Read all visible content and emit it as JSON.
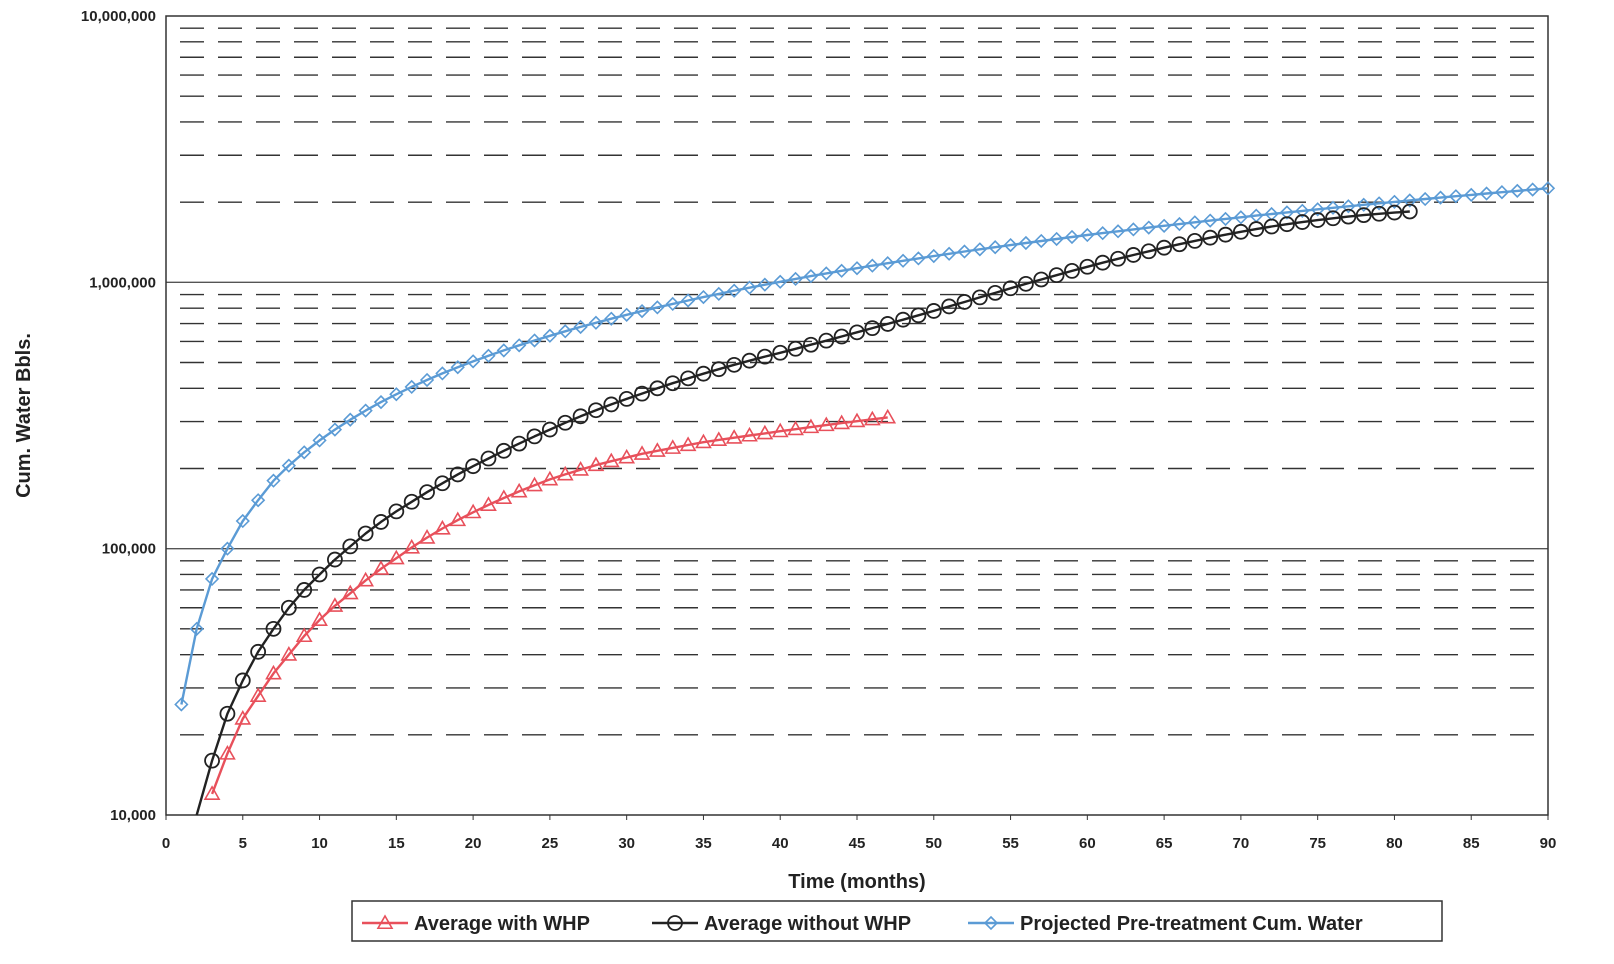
{
  "chart_data": {
    "type": "line",
    "title": "",
    "xlabel": "Time (months)",
    "ylabel": "Cum. Water Bbls.",
    "xlim": [
      0,
      90
    ],
    "ylim": [
      10000,
      10000000
    ],
    "yscale": "log",
    "grid": true,
    "legend_position": "bottom",
    "x_ticks": [
      0,
      5,
      10,
      15,
      20,
      25,
      30,
      35,
      40,
      45,
      50,
      55,
      60,
      65,
      70,
      75,
      80,
      85,
      90
    ],
    "y_ticks": [
      {
        "value": 10000,
        "label": "10,000"
      },
      {
        "value": 100000,
        "label": "100,000"
      },
      {
        "value": 1000000,
        "label": "1,000,000"
      },
      {
        "value": 10000000,
        "label": "10,000,000"
      }
    ],
    "series": [
      {
        "name": "Average with WHP",
        "color": "#e8505b",
        "marker": "triangle",
        "x": [
          3,
          4,
          5,
          6,
          7,
          8,
          9,
          10,
          11,
          12,
          13,
          14,
          15,
          16,
          17,
          18,
          19,
          20,
          21,
          22,
          23,
          24,
          25,
          26,
          27,
          28,
          29,
          30,
          31,
          32,
          33,
          34,
          35,
          36,
          37,
          38,
          39,
          40,
          41,
          42,
          43,
          44,
          45,
          46,
          47
        ],
        "y": [
          12000,
          17000,
          23000,
          28000,
          34000,
          40000,
          47000,
          54000,
          61000,
          68000,
          76000,
          84000,
          92000,
          101000,
          110000,
          119000,
          128000,
          137000,
          146000,
          155000,
          164000,
          173000,
          182000,
          190000,
          198000,
          206000,
          213000,
          220000,
          227000,
          233000,
          239000,
          245000,
          251000,
          256000,
          261000,
          266000,
          271000,
          276000,
          281000,
          286000,
          291000,
          296000,
          301000,
          306000,
          311000
        ]
      },
      {
        "name": "Average without WHP",
        "color": "#222222",
        "marker": "circle",
        "x": [
          2,
          3,
          4,
          5,
          6,
          7,
          8,
          9,
          10,
          11,
          12,
          13,
          14,
          15,
          16,
          17,
          18,
          19,
          20,
          21,
          22,
          23,
          24,
          25,
          26,
          27,
          28,
          29,
          30,
          31,
          32,
          33,
          34,
          35,
          36,
          37,
          38,
          39,
          40,
          41,
          42,
          43,
          44,
          45,
          46,
          47,
          48,
          49,
          50,
          51,
          52,
          53,
          54,
          55,
          56,
          57,
          58,
          59,
          60,
          61,
          62,
          63,
          64,
          65,
          66,
          67,
          68,
          69,
          70,
          71,
          72,
          73,
          74,
          75,
          76,
          77,
          78,
          79,
          80,
          81
        ],
        "y": [
          9000,
          16000,
          24000,
          32000,
          41000,
          50000,
          60000,
          70000,
          80000,
          91000,
          102000,
          114000,
          126000,
          138000,
          150000,
          163000,
          176000,
          190000,
          204000,
          218000,
          233000,
          248000,
          264000,
          280000,
          297000,
          314000,
          331000,
          348000,
          365000,
          382000,
          400000,
          418000,
          436000,
          454000,
          472000,
          490000,
          508000,
          526000,
          544000,
          563000,
          583000,
          604000,
          626000,
          649000,
          673000,
          698000,
          724000,
          752000,
          781000,
          812000,
          844000,
          878000,
          913000,
          950000,
          987000,
          1025000,
          1064000,
          1104000,
          1144000,
          1185000,
          1226000,
          1267000,
          1308000,
          1349000,
          1390000,
          1431000,
          1471000,
          1510000,
          1548000,
          1585000,
          1620000,
          1653000,
          1684000,
          1713000,
          1740000,
          1765000,
          1788000,
          1809000,
          1828000,
          1845000
        ]
      },
      {
        "name": "Projected Pre-treatment Cum. Water",
        "color": "#5b9bd5",
        "marker": "diamond",
        "x": [
          1,
          2,
          3,
          4,
          5,
          6,
          7,
          8,
          9,
          10,
          11,
          12,
          13,
          14,
          15,
          16,
          17,
          18,
          19,
          20,
          21,
          22,
          23,
          24,
          25,
          26,
          27,
          28,
          29,
          30,
          31,
          32,
          33,
          34,
          35,
          36,
          37,
          38,
          39,
          40,
          41,
          42,
          43,
          44,
          45,
          46,
          47,
          48,
          49,
          50,
          51,
          52,
          53,
          54,
          55,
          56,
          57,
          58,
          59,
          60,
          61,
          62,
          63,
          64,
          65,
          66,
          67,
          68,
          69,
          70,
          71,
          72,
          73,
          74,
          75,
          76,
          77,
          78,
          79,
          80,
          81,
          82,
          83,
          84,
          85,
          86,
          87,
          88,
          89,
          90
        ],
        "y": [
          26000,
          50000,
          77000,
          100000,
          127000,
          152000,
          180000,
          205000,
          230000,
          255000,
          280000,
          305000,
          330000,
          355000,
          380000,
          405000,
          430000,
          455000,
          480000,
          505000,
          530000,
          555000,
          580000,
          605000,
          630000,
          655000,
          680000,
          705000,
          730000,
          755000,
          780000,
          805000,
          830000,
          855000,
          880000,
          905000,
          930000,
          955000,
          980000,
          1005000,
          1030000,
          1055000,
          1080000,
          1105000,
          1130000,
          1155000,
          1180000,
          1205000,
          1230000,
          1255000,
          1280000,
          1305000,
          1330000,
          1355000,
          1380000,
          1405000,
          1430000,
          1455000,
          1480000,
          1505000,
          1530000,
          1555000,
          1580000,
          1605000,
          1630000,
          1655000,
          1680000,
          1705000,
          1730000,
          1755000,
          1780000,
          1805000,
          1830000,
          1855000,
          1880000,
          1905000,
          1930000,
          1955000,
          1980000,
          2005000,
          2030000,
          2055000,
          2080000,
          2105000,
          2130000,
          2155000,
          2180000,
          2205000,
          2230000,
          2255000
        ]
      }
    ]
  }
}
